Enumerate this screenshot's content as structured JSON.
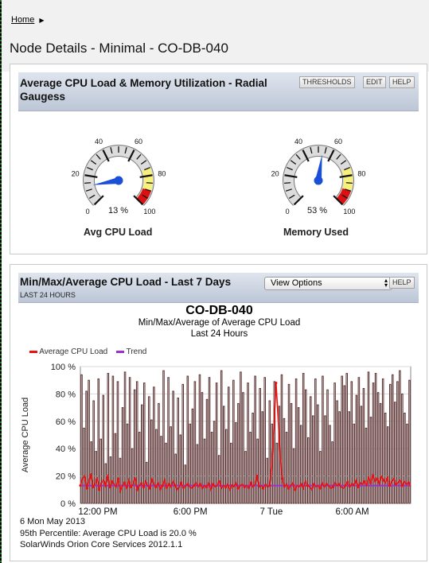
{
  "breadcrumb": {
    "home": "Home"
  },
  "page": {
    "title": "Node Details - Minimal - CO-DB-040"
  },
  "gauges_panel": {
    "title": "Average CPU Load & Memory Utilization - Radial Gaugess",
    "buttons": {
      "thresholds": "THRESHOLDS",
      "edit": "EDIT",
      "help": "HELP"
    },
    "gauges": [
      {
        "label": "Avg CPU Load",
        "value": 13,
        "value_text": "13 %",
        "ticks": [
          "0",
          "20",
          "40",
          "60",
          "80",
          "100"
        ]
      },
      {
        "label": "Memory Used",
        "value": 53,
        "value_text": "53 %",
        "ticks": [
          "0",
          "20",
          "40",
          "60",
          "80",
          "100"
        ]
      }
    ],
    "colors": {
      "warning": "#f7f07a",
      "critical": "#dd1111",
      "needle": "#1a4fd6"
    }
  },
  "cpu_panel": {
    "title": "Min/Max/Average CPU Load - Last 7 Days",
    "subtitle": "LAST 24 HOURS",
    "view_options": "View Options",
    "help": "HELP"
  },
  "chart_data": {
    "type": "bar",
    "title": "CO-DB-040",
    "subtitle": "Min/Max/Average of Average CPU Load",
    "subtitle2": "Last 24 Hours",
    "ylabel": "Average CPU Load",
    "ylim": [
      0,
      100
    ],
    "y_ticks": [
      "0 %",
      "20 %",
      "40 %",
      "60 %",
      "80 %",
      "100 %"
    ],
    "x_ticks": [
      "12:00 PM",
      "6:00 PM",
      "7 Tue",
      "6:00 AM"
    ],
    "legend": [
      {
        "name": "Average CPU Load",
        "color": "#ee1111"
      },
      {
        "name": "Trend",
        "color": "#9933cc"
      }
    ],
    "trend_value": 13,
    "percentile_value": 20,
    "max_bars": [
      94,
      55,
      82,
      90,
      45,
      75,
      38,
      91,
      47,
      79,
      29,
      95,
      34,
      93,
      51,
      89,
      33,
      70,
      96,
      58,
      92,
      40,
      83,
      89,
      52,
      72,
      88,
      30,
      78,
      61,
      85,
      54,
      73,
      49,
      97,
      44,
      92,
      56,
      82,
      36,
      77,
      50,
      87,
      28,
      93,
      58,
      69,
      89,
      43,
      94,
      81,
      47,
      76,
      92,
      52,
      60,
      88,
      35,
      97,
      71,
      54,
      85,
      44,
      90,
      59,
      73,
      96,
      81,
      38,
      88,
      52,
      66,
      93,
      47,
      84,
      67,
      92,
      33,
      75,
      58,
      89,
      44,
      71,
      94,
      62,
      52,
      87,
      73,
      40,
      91,
      70,
      57,
      95,
      83,
      48,
      78,
      64,
      91,
      72,
      38,
      93,
      64,
      83,
      57,
      45,
      88,
      75,
      67,
      93,
      86,
      95,
      67,
      89,
      58,
      79,
      92,
      71,
      84,
      55,
      96,
      63,
      88,
      95,
      81,
      73,
      91,
      66,
      56,
      87,
      94,
      74,
      89,
      97,
      80,
      66,
      58,
      90
    ],
    "avg_line": [
      13,
      18,
      20,
      11,
      16,
      22,
      12,
      14,
      19,
      10,
      15,
      17,
      13,
      21,
      11,
      16,
      14,
      12,
      18,
      9,
      13,
      15,
      11,
      17,
      12,
      14,
      19,
      10,
      13,
      15,
      12,
      16,
      13,
      11,
      18,
      14,
      12,
      15,
      10,
      13,
      17,
      11,
      14,
      12,
      16,
      13,
      10,
      12,
      15,
      11,
      13,
      14,
      12,
      11,
      13,
      15,
      12,
      14,
      11,
      13,
      12,
      15,
      10,
      14,
      12,
      13,
      16,
      11,
      13,
      12,
      14,
      10,
      13,
      12,
      15,
      11,
      13,
      14,
      12,
      13,
      11,
      15,
      12,
      14,
      20,
      12,
      13,
      11,
      14,
      12,
      13,
      28,
      55,
      88,
      62,
      34,
      18,
      12,
      14,
      11,
      13,
      15,
      10,
      13,
      12,
      14,
      11,
      16,
      13,
      12,
      10,
      14,
      12,
      13,
      11,
      15,
      12,
      14,
      13,
      11,
      12,
      15,
      13,
      14,
      12,
      11,
      13,
      16,
      12,
      14,
      13,
      17,
      12,
      15,
      14,
      16,
      13,
      19,
      15,
      21,
      16,
      18,
      14,
      20,
      17,
      15,
      19,
      13,
      16,
      18,
      14,
      15,
      17,
      13,
      16,
      14,
      15,
      12
    ]
  },
  "footer": {
    "date": "6 Mon May 2013",
    "percentile": "95th Percentile: Average CPU Load is 20.0  %",
    "product": "SolarWinds Orion Core Services 2012.1.1"
  }
}
